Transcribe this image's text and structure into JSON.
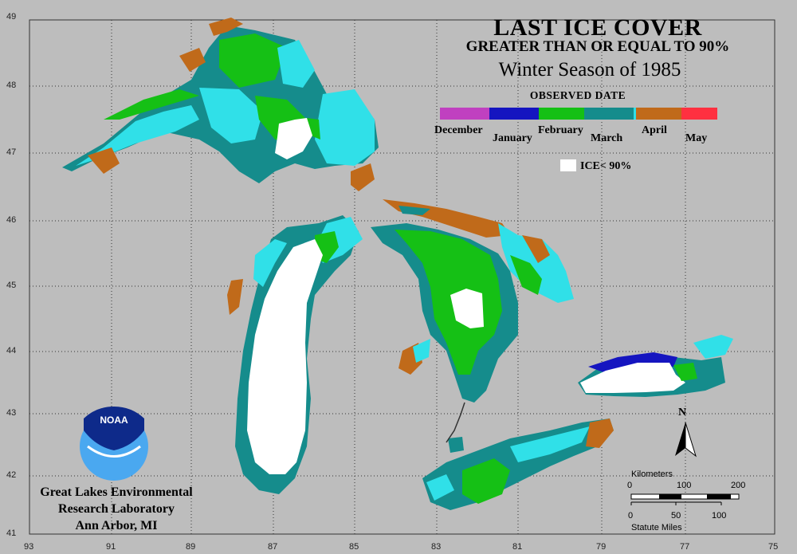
{
  "title": {
    "line1": "LAST ICE COVER",
    "line2": "GREATER THAN OR EQUAL TO 90%",
    "line3": "Winter Season of 1985"
  },
  "legend": {
    "title": "OBSERVED DATE",
    "months_upper": [
      "December",
      "February",
      "April"
    ],
    "months_lower": [
      "January",
      "March",
      "May"
    ],
    "ice_label": "ICE< 90%",
    "colors": {
      "december": "#c040c0",
      "january": "#1515c0",
      "february": "#15c015",
      "march": "#158c8c",
      "march_late": "#30e0e8",
      "april": "#c06a1a",
      "may": "#ff3040",
      "ice_lt_90": "#ffffff"
    }
  },
  "axes": {
    "lon_labels": [
      "93",
      "91",
      "89",
      "87",
      "85",
      "83",
      "81",
      "79",
      "77",
      "75"
    ],
    "lat_labels": [
      "49",
      "48",
      "47",
      "46",
      "45",
      "44",
      "43",
      "42",
      "41"
    ]
  },
  "credit": {
    "line1": "Great Lakes Environmental",
    "line2": "Research Laboratory",
    "line3": "Ann Arbor, MI"
  },
  "logo": {
    "text": "NOAA"
  },
  "scale": {
    "km_label": "Kilometers",
    "km_ticks": [
      "0",
      "100",
      "200"
    ],
    "mi_ticks": [
      "0",
      "50",
      "100"
    ],
    "mi_label": "Statute Miles"
  },
  "north": {
    "label": "N"
  }
}
